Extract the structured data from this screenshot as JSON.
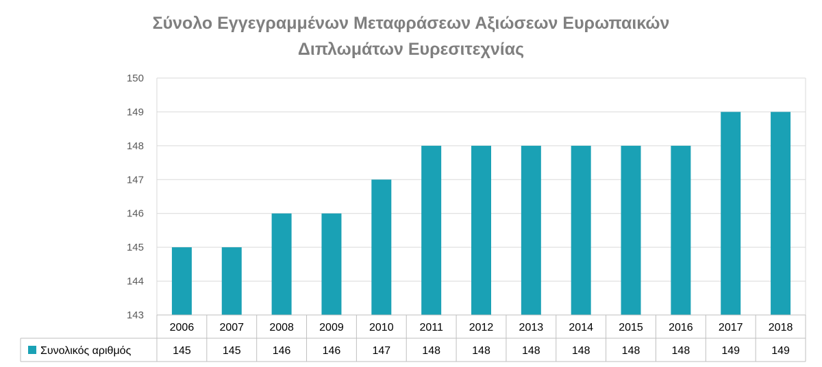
{
  "chart_data": {
    "type": "bar",
    "title": "Σύνολο Εγγεγραμμένων Μεταφράσεων Αξιώσεων Ευρωπαικών Διπλωμάτων Ευρεσιτεχνίας",
    "title_lines": [
      "Σύνολο Εγγεγραμμένων Μεταφράσεων Αξιώσεων Ευρωπαικών",
      "Διπλωμάτων Ευρεσιτεχνίας"
    ],
    "categories": [
      "2006",
      "2007",
      "2008",
      "2009",
      "2010",
      "2011",
      "2012",
      "2013",
      "2014",
      "2015",
      "2016",
      "2017",
      "2018"
    ],
    "series": [
      {
        "name": "Συνολικός αριθμός",
        "values": [
          145,
          145,
          146,
          146,
          147,
          148,
          148,
          148,
          148,
          148,
          148,
          149,
          149
        ],
        "color": "#1aa1b5"
      }
    ],
    "ylim": [
      143,
      150
    ],
    "yticks": [
      143,
      144,
      145,
      146,
      147,
      148,
      149,
      150
    ],
    "xlabel": "",
    "ylabel": "",
    "grid": true,
    "legend": "data-table"
  }
}
